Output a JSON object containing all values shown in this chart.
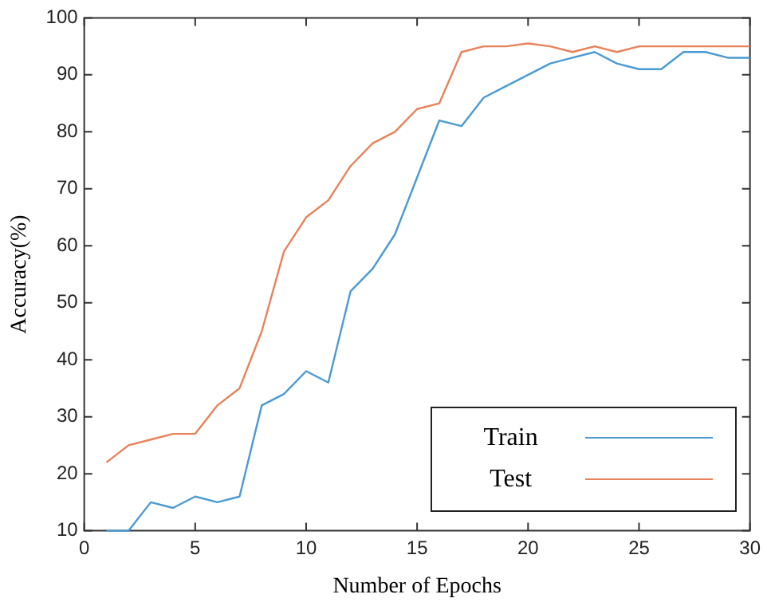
{
  "chart_data": {
    "type": "line",
    "xlabel": "Number of Epochs",
    "ylabel": "Accuracy(%)",
    "x": [
      1,
      2,
      3,
      4,
      5,
      6,
      7,
      8,
      9,
      10,
      11,
      12,
      13,
      14,
      15,
      16,
      17,
      18,
      19,
      20,
      21,
      22,
      23,
      24,
      25,
      26,
      27,
      28,
      29,
      30
    ],
    "series": [
      {
        "name": "Train",
        "color": "#4a9ad4",
        "values": [
          10,
          10,
          15,
          14,
          16,
          15,
          16,
          32,
          34,
          38,
          36,
          52,
          56,
          62,
          72,
          82,
          81,
          86,
          88,
          90,
          92,
          93,
          94,
          92,
          91,
          91,
          94,
          94,
          93,
          93
        ]
      },
      {
        "name": "Test",
        "color": "#e8825a",
        "values": [
          22,
          25,
          26,
          27,
          27,
          32,
          35,
          45,
          59,
          65,
          68,
          74,
          78,
          80,
          84,
          85,
          94,
          95,
          95,
          95.5,
          95,
          94,
          95,
          94,
          95,
          95,
          95,
          95,
          95,
          95
        ]
      }
    ],
    "xlim": [
      0,
      30
    ],
    "xticks": [
      0,
      5,
      10,
      15,
      20,
      25,
      30
    ],
    "ylim": [
      10,
      100
    ],
    "yticks": [
      10,
      20,
      30,
      40,
      50,
      60,
      70,
      80,
      90,
      100
    ],
    "grid": false,
    "legend": "bottom right",
    "marker": "none",
    "line_style": "solid"
  }
}
